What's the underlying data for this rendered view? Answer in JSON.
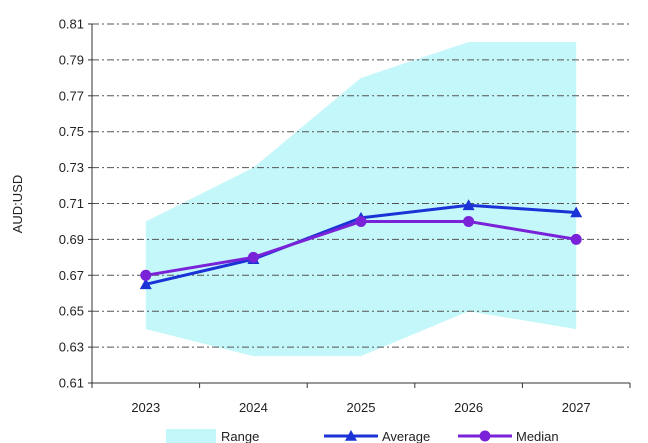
{
  "chart_data": {
    "type": "line",
    "categories": [
      "2023",
      "2024",
      "2025",
      "2026",
      "2027"
    ],
    "ylabel": "AUD:USD",
    "ylim": [
      0.61,
      0.81
    ],
    "yticks": [
      "0.61",
      "0.63",
      "0.65",
      "0.67",
      "0.69",
      "0.71",
      "0.73",
      "0.75",
      "0.77",
      "0.79",
      "0.81"
    ],
    "grid": "horizontal dash-dot",
    "legend": "bottom",
    "range": {
      "name": "Range",
      "color": "#c4f7fa",
      "low": [
        0.64,
        0.625,
        0.625,
        0.65,
        0.64
      ],
      "high": [
        0.7,
        0.73,
        0.78,
        0.8,
        0.8
      ]
    },
    "series": [
      {
        "name": "Average",
        "color": "#1a32d6",
        "marker": "triangle",
        "values": [
          0.665,
          0.679,
          0.702,
          0.709,
          0.705
        ]
      },
      {
        "name": "Median",
        "color": "#7a22d8",
        "marker": "circle",
        "values": [
          0.67,
          0.68,
          0.7,
          0.7,
          0.69
        ]
      }
    ]
  }
}
